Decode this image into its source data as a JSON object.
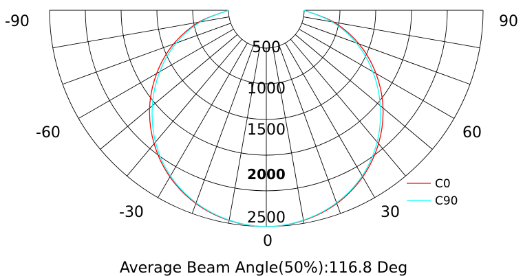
{
  "chart_data": {
    "type": "polar",
    "caption": "Average Beam Angle(50%):116.8 Deg",
    "radial_axis": {
      "min": 0,
      "max": 2500,
      "tick_labels": [
        "500",
        "1000",
        "1500",
        "2000",
        "2500"
      ],
      "ticks": [
        500,
        1000,
        1500,
        2000,
        2500
      ]
    },
    "angle_axis": {
      "min": -90,
      "max": 90,
      "gridline_step": 10,
      "tick_labels": [
        {
          "text": "-90",
          "angle": -90
        },
        {
          "text": "-60",
          "angle": -60
        },
        {
          "text": "-30",
          "angle": -30
        },
        {
          "text": "0",
          "angle": 0
        },
        {
          "text": "30",
          "angle": 30
        },
        {
          "text": "60",
          "angle": 60
        },
        {
          "text": "90",
          "angle": 90
        }
      ]
    },
    "legend_position": "bottom-right",
    "series": [
      {
        "name": "C0",
        "color": "#ff0000",
        "angles": [
          -90,
          -80,
          -70,
          -60,
          -50,
          -40,
          -30,
          -20,
          -10,
          0,
          10,
          20,
          30,
          40,
          50,
          60,
          70,
          80,
          90
        ],
        "values": [
          0,
          430,
          850,
          1240,
          1600,
          1910,
          2165,
          2350,
          2460,
          2500,
          2460,
          2350,
          2165,
          1910,
          1600,
          1240,
          850,
          430,
          0
        ]
      },
      {
        "name": "C90",
        "color": "#00ffff",
        "angles": [
          -90,
          -80,
          -70,
          -60,
          -50,
          -40,
          -30,
          -20,
          -10,
          0,
          10,
          20,
          30,
          40,
          50,
          60,
          70,
          80,
          90
        ],
        "values": [
          0,
          405,
          810,
          1190,
          1550,
          1880,
          2150,
          2340,
          2455,
          2500,
          2455,
          2340,
          2150,
          1880,
          1550,
          1190,
          810,
          405,
          0
        ]
      }
    ]
  }
}
